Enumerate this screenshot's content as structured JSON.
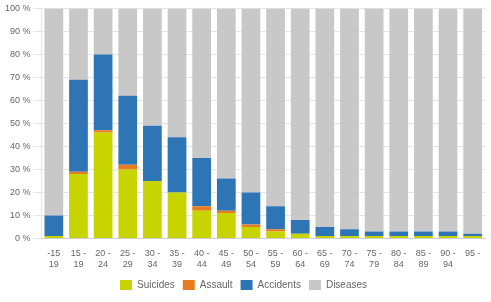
{
  "chart_data": {
    "type": "bar",
    "stacked": true,
    "categories": [
      "-15\n19",
      "15 -\n19",
      "20 -\n24",
      "25 -\n29",
      "30 -\n34",
      "35 -\n39",
      "40 -\n44",
      "45 -\n49",
      "50 -\n54",
      "55 -\n59",
      "60 -\n64",
      "65 -\n69",
      "70 -\n74",
      "75 -\n79",
      "80 -\n84",
      "85 -\n89",
      "90 -\n94",
      "95 -"
    ],
    "series": [
      {
        "name": "Suicides",
        "color": "#c8d400",
        "values": [
          1,
          28,
          46,
          30,
          25,
          20,
          12,
          11,
          5,
          3,
          2,
          1,
          1,
          1,
          1,
          1,
          1,
          1
        ]
      },
      {
        "name": "Assault",
        "color": "#e87b20",
        "values": [
          0,
          1,
          1,
          2,
          0,
          0,
          2,
          1,
          1,
          1,
          0,
          0,
          0,
          0,
          0,
          0,
          0,
          0
        ]
      },
      {
        "name": "Accidents",
        "color": "#2e75b6",
        "values": [
          9,
          40,
          33,
          30,
          24,
          24,
          21,
          14,
          14,
          10,
          6,
          4,
          3,
          2,
          2,
          2,
          2,
          1
        ]
      },
      {
        "name": "Diseases",
        "color": "#c8c8c8",
        "values": [
          90,
          31,
          20,
          38,
          51,
          56,
          65,
          74,
          80,
          86,
          92,
          95,
          96,
          97,
          97,
          97,
          97,
          98
        ]
      }
    ],
    "ylim": [
      0,
      100
    ],
    "yticks": [
      {
        "value": 0,
        "label": "0 %"
      },
      {
        "value": 10,
        "label": "10 %"
      },
      {
        "value": 20,
        "label": "20 %"
      },
      {
        "value": 30,
        "label": "30 %"
      },
      {
        "value": 40,
        "label": "40 %"
      },
      {
        "value": 50,
        "label": "50 %"
      },
      {
        "value": 60,
        "label": "60 %"
      },
      {
        "value": 70,
        "label": "70 %"
      },
      {
        "value": 80,
        "label": "80 %"
      },
      {
        "value": 90,
        "label": "90 %"
      },
      {
        "value": 100,
        "label": "100 %"
      }
    ],
    "grid": true,
    "legend": "bottom"
  }
}
